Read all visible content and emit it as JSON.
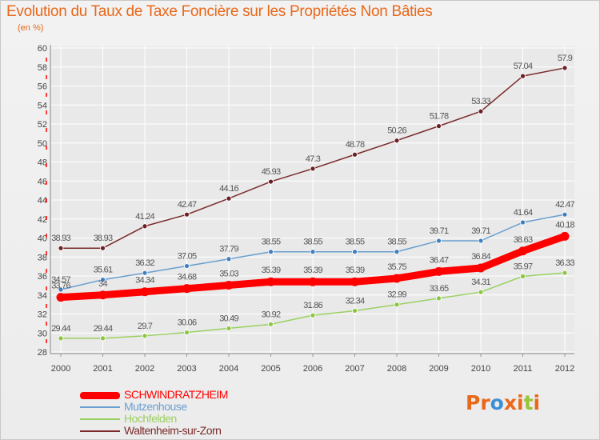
{
  "header": {
    "title": "Evolution du Taux de Taxe Foncière sur les Propriétés Non Bâties",
    "unit": "(en %)"
  },
  "legend": {
    "items": [
      {
        "label": "SCHWINDRATZHEIM",
        "color": "#ff0000"
      },
      {
        "label": "Mutzenhouse",
        "color": "#6a9fcf"
      },
      {
        "label": "Hochfelden",
        "color": "#9ad060"
      },
      {
        "label": "Waltenheim-sur-Zorn",
        "color": "#7a2a2a"
      }
    ]
  },
  "logo": {
    "text": "Proxiti",
    "letters": [
      "P",
      "r",
      "o",
      "x",
      "i",
      "t",
      "i"
    ]
  },
  "colors": {
    "title": "#e9681a",
    "axis_labels": "#444444",
    "grid": "#ffffff",
    "axis_marks": "#ff0000",
    "logo_letters": [
      "#e9681a",
      "#e9681a",
      "#3c8fd6",
      "#e9681a",
      "#e9681a",
      "#9ac43c",
      "#e9681a"
    ]
  },
  "chart_data": {
    "type": "line",
    "x": [
      2000,
      2001,
      2002,
      2003,
      2004,
      2005,
      2006,
      2007,
      2008,
      2009,
      2010,
      2011,
      2012
    ],
    "ylim": [
      28,
      60
    ],
    "yticks": [
      28,
      30,
      32,
      34,
      36,
      38,
      40,
      42,
      44,
      46,
      48,
      50,
      52,
      54,
      56,
      58,
      60
    ],
    "grid": true,
    "title": "Evolution du Taux de Taxe Foncière sur les Propriétés Non Bâties",
    "ylabel": "(en %)",
    "legend_position": "bottom-left",
    "series": [
      {
        "name": "Waltenheim-sur-Zorn",
        "color": "#7a2a2a",
        "marker": "#6b1f24",
        "values": [
          38.93,
          38.93,
          41.24,
          42.47,
          44.16,
          45.93,
          47.3,
          48.78,
          50.26,
          51.78,
          53.33,
          57.04,
          57.9
        ],
        "labels": [
          "38.93",
          "38.93",
          "41.24",
          "42.47",
          "44.16",
          "45.93",
          "47.3",
          "48.78",
          "50.26",
          "51.78",
          "53.33",
          "57.04",
          "57.9"
        ]
      },
      {
        "name": "Mutzenhouse",
        "color": "#6a9fcf",
        "marker": "#3f7fc0",
        "values": [
          34.57,
          35.61,
          36.32,
          37.05,
          37.79,
          38.55,
          38.55,
          38.55,
          38.55,
          39.71,
          39.71,
          41.64,
          42.47
        ],
        "labels": [
          "34.57",
          "35.61",
          "36.32",
          "37.05",
          "37.79",
          "38.55",
          "38.55",
          "38.55",
          "38.55",
          "39.71",
          "39.71",
          "41.64",
          "42.47"
        ]
      },
      {
        "name": "Hochfelden",
        "color": "#9ad060",
        "marker": "#8cc63f",
        "values": [
          29.44,
          29.44,
          29.7,
          30.06,
          30.49,
          30.92,
          31.86,
          32.34,
          32.99,
          33.65,
          34.31,
          35.97,
          36.33
        ],
        "labels": [
          "29.44",
          "29.44",
          "29.7",
          "30.06",
          "30.49",
          "30.92",
          "31.86",
          "32.34",
          "32.99",
          "33.65",
          "34.31",
          "35.97",
          "36.33"
        ]
      },
      {
        "name": "SCHWINDRATZHEIM",
        "color": "#ff0000",
        "marker": "#ff0000",
        "values": [
          33.76,
          34.0,
          34.34,
          34.68,
          35.03,
          35.39,
          35.39,
          35.39,
          35.75,
          36.47,
          36.84,
          38.63,
          40.18
        ],
        "labels": [
          "33.76",
          "34",
          "34.34",
          "34.68",
          "35.03",
          "35.39",
          "35.39",
          "35.39",
          "35.75",
          "36.47",
          "36.84",
          "38.63",
          "40.18"
        ]
      }
    ]
  }
}
